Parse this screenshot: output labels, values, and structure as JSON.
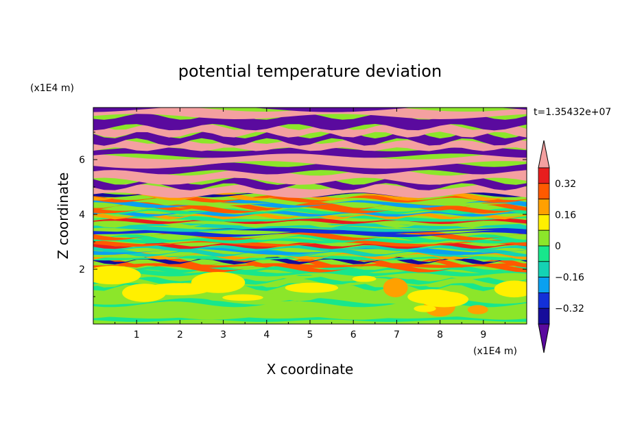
{
  "chart_data": {
    "type": "heatmap",
    "title": "potential temperature deviation",
    "xlabel": "X coordinate",
    "ylabel": "Z coordinate",
    "x_unit": "(x1E4 m)",
    "y_unit": "(x1E4 m)",
    "time_label": "t=1.35432e+07",
    "xlim": [
      0,
      10
    ],
    "ylim": [
      0,
      7.9
    ],
    "x_ticks": [
      "1",
      "2",
      "3",
      "4",
      "5",
      "6",
      "7",
      "8",
      "9"
    ],
    "y_ticks": [
      "2",
      "4",
      "6"
    ],
    "colorbar": {
      "levels": [
        -0.4,
        -0.32,
        -0.24,
        -0.16,
        -0.08,
        0,
        0.08,
        0.16,
        0.24,
        0.32,
        0.4
      ],
      "tick_labels": [
        "0.32",
        "0.16",
        "0",
        "−0.16",
        "−0.32"
      ],
      "colors": [
        "#5a0a9e",
        "#160c9a",
        "#1330d8",
        "#0aa0f0",
        "#14d2b4",
        "#18e68c",
        "#8ce62a",
        "#fff000",
        "#ffa000",
        "#ff5a00",
        "#e81e1e",
        "#f4a0a0"
      ],
      "extend": "both"
    },
    "field_description": {
      "lower_layer_z": [
        0,
        2
      ],
      "lower_layer_values": [
        -0.04,
        0.06
      ],
      "middle_layer_z": [
        2,
        4.7
      ],
      "upper_layer_z": [
        4.7,
        7.9
      ],
      "upper_layer_values": [
        -0.4,
        0.4
      ]
    }
  }
}
